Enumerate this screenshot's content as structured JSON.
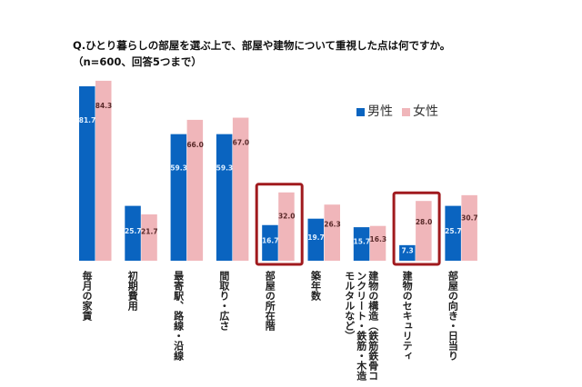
{
  "chart_data": {
    "type": "bar",
    "title": "Q.ひとり暮らしの部屋を選ぶ上で、部屋や建物について重視した点は何ですか。",
    "subtitle": "（n=600、回答5つまで）",
    "categories": [
      "毎月の家賃",
      "初期費用",
      "最寄駅、路線・沿線",
      "間取り・広さ",
      "部屋の所在階",
      "築年数",
      "建物の構造（鉄筋鉄骨コンクリート・鉄筋・木造モルタルなど）",
      "建物のセキュリティ",
      "部屋の向き・日当り"
    ],
    "series": [
      {
        "name": "男性",
        "color": "#0a64c0",
        "values": [
          81.7,
          25.7,
          59.3,
          59.3,
          16.7,
          19.7,
          15.7,
          7.3,
          25.7
        ]
      },
      {
        "name": "女性",
        "color": "#f0b6ba",
        "values": [
          84.3,
          21.7,
          66.0,
          67.0,
          32.0,
          26.3,
          16.3,
          28.0,
          30.7
        ]
      }
    ],
    "highlighted_categories": [
      "部屋の所在階",
      "建物のセキュリティ"
    ],
    "highlight_color": "#a01a1e",
    "legend": "top-right",
    "grid": false
  }
}
